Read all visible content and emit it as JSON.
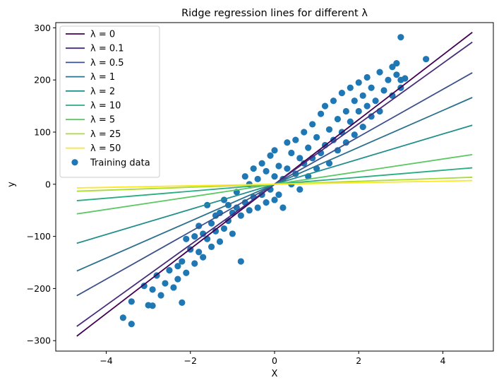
{
  "chart_data": {
    "type": "scatter",
    "title": "Ridge regression lines for different λ",
    "xlabel": "X",
    "ylabel": "y",
    "xlim": [
      -5.2,
      5.2
    ],
    "ylim": [
      -320,
      310
    ],
    "xticks": [
      -4,
      -2,
      0,
      2,
      4
    ],
    "xtick_labels": [
      "−4",
      "−2",
      "0",
      "2",
      "4"
    ],
    "yticks": [
      -300,
      -200,
      -100,
      0,
      100,
      200,
      300
    ],
    "ytick_labels": [
      "−300",
      "−200",
      "−100",
      "0",
      "100",
      "200",
      "300"
    ],
    "grid": false,
    "legend_position": "upper-left",
    "line_x_range": [
      -4.7,
      4.7
    ],
    "series": [
      {
        "name": "λ = 0",
        "type": "line",
        "slope": 62.0,
        "intercept": 0.0,
        "color": "#440154"
      },
      {
        "name": "λ = 0.1",
        "type": "line",
        "slope": 58.0,
        "intercept": 0.0,
        "color": "#472c7a"
      },
      {
        "name": "λ = 0.5",
        "type": "line",
        "slope": 45.5,
        "intercept": 0.0,
        "color": "#3b518b"
      },
      {
        "name": "λ = 1",
        "type": "line",
        "slope": 35.4,
        "intercept": 0.0,
        "color": "#2c718e"
      },
      {
        "name": "λ = 2",
        "type": "line",
        "slope": 24.1,
        "intercept": 0.0,
        "color": "#21908d"
      },
      {
        "name": "λ = 10",
        "type": "line",
        "slope": 6.7,
        "intercept": 0.0,
        "color": "#27ad81"
      },
      {
        "name": "λ = 5",
        "type": "line",
        "slope": 12.1,
        "intercept": 0.0,
        "color": "#5cc863"
      },
      {
        "name": "λ = 25",
        "type": "line",
        "slope": 2.85,
        "intercept": 0.0,
        "color": "#aadc32"
      },
      {
        "name": "λ = 50",
        "type": "line",
        "slope": 1.5,
        "intercept": 0.0,
        "color": "#fde725"
      },
      {
        "name": "Training data",
        "type": "scatter",
        "color": "#1f77b4",
        "points": [
          [
            -3.6,
            -256
          ],
          [
            -3.4,
            -268
          ],
          [
            -3.4,
            -225
          ],
          [
            -3.1,
            -195
          ],
          [
            -3.0,
            -232
          ],
          [
            -2.9,
            -233
          ],
          [
            -2.9,
            -202
          ],
          [
            -2.8,
            -175
          ],
          [
            -2.7,
            -213
          ],
          [
            -2.6,
            -190
          ],
          [
            -2.5,
            -165
          ],
          [
            -2.4,
            -198
          ],
          [
            -2.3,
            -157
          ],
          [
            -2.3,
            -182
          ],
          [
            -2.2,
            -227
          ],
          [
            -2.2,
            -148
          ],
          [
            -2.1,
            -170
          ],
          [
            -2.1,
            -105
          ],
          [
            -2.0,
            -125
          ],
          [
            -1.9,
            -152
          ],
          [
            -1.9,
            -100
          ],
          [
            -1.8,
            -130
          ],
          [
            -1.8,
            -80
          ],
          [
            -1.7,
            -140
          ],
          [
            -1.7,
            -95
          ],
          [
            -1.6,
            -105
          ],
          [
            -1.6,
            -40
          ],
          [
            -1.5,
            -120
          ],
          [
            -1.5,
            -75
          ],
          [
            -1.4,
            -90
          ],
          [
            -1.4,
            -60
          ],
          [
            -1.3,
            -110
          ],
          [
            -1.3,
            -55
          ],
          [
            -1.2,
            -85
          ],
          [
            -1.2,
            -30
          ],
          [
            -1.1,
            -70
          ],
          [
            -1.1,
            -40
          ],
          [
            -1.0,
            -95
          ],
          [
            -1.0,
            -55
          ],
          [
            -0.9,
            -45
          ],
          [
            -0.9,
            -15
          ],
          [
            -0.8,
            -148
          ],
          [
            -0.8,
            -60
          ],
          [
            -0.7,
            -35
          ],
          [
            -0.7,
            15
          ],
          [
            -0.6,
            -50
          ],
          [
            -0.6,
            0
          ],
          [
            -0.5,
            -25
          ],
          [
            -0.5,
            30
          ],
          [
            -0.4,
            -45
          ],
          [
            -0.4,
            10
          ],
          [
            -0.3,
            -20
          ],
          [
            -0.3,
            40
          ],
          [
            -0.2,
            -35
          ],
          [
            -0.2,
            25
          ],
          [
            -0.1,
            -10
          ],
          [
            -0.1,
            55
          ],
          [
            0.0,
            -30
          ],
          [
            0.0,
            15
          ],
          [
            0.0,
            65
          ],
          [
            0.1,
            -20
          ],
          [
            0.1,
            35
          ],
          [
            0.2,
            -45
          ],
          [
            0.2,
            10
          ],
          [
            0.3,
            30
          ],
          [
            0.3,
            80
          ],
          [
            0.4,
            0
          ],
          [
            0.4,
            60
          ],
          [
            0.5,
            20
          ],
          [
            0.5,
            85
          ],
          [
            0.6,
            -10
          ],
          [
            0.6,
            50
          ],
          [
            0.7,
            40
          ],
          [
            0.7,
            100
          ],
          [
            0.8,
            15
          ],
          [
            0.8,
            70
          ],
          [
            0.9,
            50
          ],
          [
            0.9,
            115
          ],
          [
            1.0,
            30
          ],
          [
            1.0,
            90
          ],
          [
            1.1,
            60
          ],
          [
            1.1,
            135
          ],
          [
            1.2,
            75
          ],
          [
            1.2,
            150
          ],
          [
            1.3,
            40
          ],
          [
            1.3,
            105
          ],
          [
            1.4,
            85
          ],
          [
            1.4,
            160
          ],
          [
            1.5,
            65
          ],
          [
            1.5,
            125
          ],
          [
            1.6,
            100
          ],
          [
            1.6,
            175
          ],
          [
            1.7,
            80
          ],
          [
            1.7,
            140
          ],
          [
            1.8,
            120
          ],
          [
            1.8,
            185
          ],
          [
            1.9,
            95
          ],
          [
            1.9,
            160
          ],
          [
            2.0,
            140
          ],
          [
            2.0,
            195
          ],
          [
            2.1,
            110
          ],
          [
            2.1,
            170
          ],
          [
            2.2,
            150
          ],
          [
            2.2,
            205
          ],
          [
            2.3,
            130
          ],
          [
            2.3,
            185
          ],
          [
            2.4,
            160
          ],
          [
            2.5,
            215
          ],
          [
            2.5,
            140
          ],
          [
            2.6,
            180
          ],
          [
            2.7,
            200
          ],
          [
            2.8,
            225
          ],
          [
            2.8,
            170
          ],
          [
            2.9,
            210
          ],
          [
            2.9,
            232
          ],
          [
            3.0,
            185
          ],
          [
            3.0,
            200
          ],
          [
            3.0,
            282
          ],
          [
            3.1,
            203
          ],
          [
            3.6,
            240
          ]
        ]
      }
    ]
  }
}
